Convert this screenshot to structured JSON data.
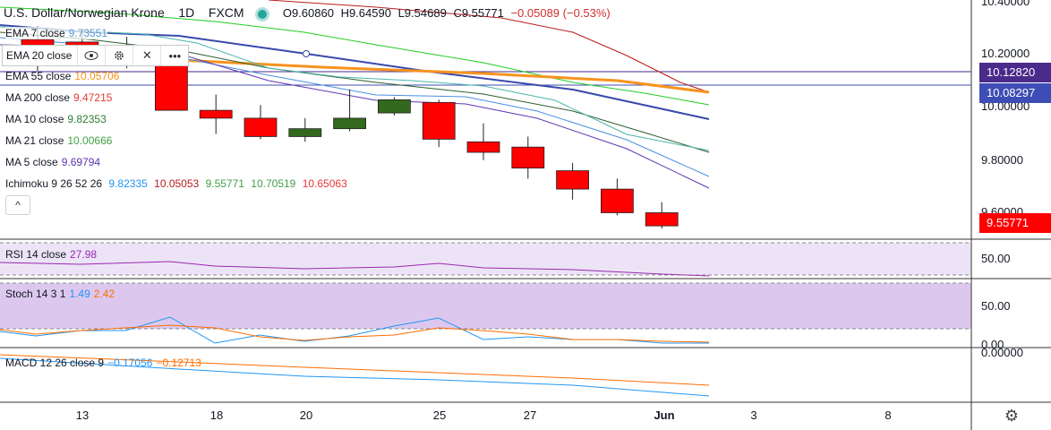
{
  "header": {
    "symbol": "U.S. Dollar/Norwegian Krone",
    "interval": "1D",
    "source": "FXCM",
    "open": "O9.60860",
    "high": "H9.64590",
    "low": "L9.54689",
    "close": "C9.55771",
    "change": "−0.05089 (−0.53%)"
  },
  "legend": {
    "ema7": {
      "name": "EMA 7 close",
      "value": "9.73551",
      "color": "#5b9bd5"
    },
    "ema20": {
      "name": "EMA 20 close"
    },
    "ema55": {
      "name": "EMA 55 close",
      "value": "10.05706",
      "color": "#f7931e"
    },
    "ma200": {
      "name": "MA 200 close",
      "value": "9.47215",
      "color": "#e53935"
    },
    "ma10": {
      "name": "MA 10 close",
      "value": "9.82353",
      "color": "#2e7d32"
    },
    "ma21": {
      "name": "MA 21 close",
      "value": "10.00666",
      "color": "#43a047"
    },
    "ma5": {
      "name": "MA 5 close",
      "value": "9.69794",
      "color": "#5e35b1"
    },
    "ichimoku": {
      "name": "Ichimoku 9 26 52 26",
      "v1": "9.82335",
      "v2": "10.05053",
      "v3": "9.55771",
      "v4": "10.70519",
      "v5": "10.65063"
    }
  },
  "toolbar_icons": [
    "eye-icon",
    "gear-icon",
    "close-icon",
    "more-icon"
  ],
  "collapse_icon": "^",
  "price_axis": {
    "ticks": [
      "10.40000",
      "10.20000",
      "10.00000",
      "9.80000",
      "9.60000"
    ],
    "tags": [
      {
        "text": "10.12820",
        "color": "#4a2a8a"
      },
      {
        "text": "10.08297",
        "color": "#3d4db5"
      },
      {
        "text": "9.55771",
        "color": "#ff0000"
      }
    ]
  },
  "rsi": {
    "label": "RSI 14 close",
    "value": "27.98",
    "ticks": [
      "50.00"
    ],
    "color": "#9c27b0"
  },
  "stoch": {
    "label": "Stoch 14 3 1",
    "k": "1.49",
    "d": "2.42",
    "ticks": [
      "50.00",
      "0.00"
    ],
    "k_color": "#2196f3",
    "d_color": "#ff6d00"
  },
  "macd": {
    "label": "MACD 12 26 close 9",
    "macd": "−0.17056",
    "signal": "−0.12713",
    "ticks": [
      "0.00000"
    ],
    "macd_color": "#2196f3",
    "signal_color": "#ff6d00"
  },
  "dates": [
    "13",
    "18",
    "20",
    "25",
    "27",
    "Jun",
    "3",
    "8"
  ],
  "settings_icon": "gear-icon",
  "chart_data": {
    "type": "candlestick",
    "candles": [
      {
        "o": 10.27,
        "h": 10.32,
        "l": 10.15,
        "c": 10.22
      },
      {
        "o": 10.26,
        "h": 10.3,
        "l": 10.17,
        "c": 10.18
      },
      {
        "o": 10.19,
        "h": 10.28,
        "l": 10.16,
        "c": 10.21
      },
      {
        "o": 10.22,
        "h": 10.24,
        "l": 10.0,
        "c": 10.0
      },
      {
        "o": 10.0,
        "h": 10.06,
        "l": 9.91,
        "c": 9.97
      },
      {
        "o": 9.97,
        "h": 10.02,
        "l": 9.89,
        "c": 9.9
      },
      {
        "o": 9.9,
        "h": 9.97,
        "l": 9.88,
        "c": 9.93
      },
      {
        "o": 9.93,
        "h": 10.08,
        "l": 9.92,
        "c": 9.97
      },
      {
        "o": 9.99,
        "h": 10.05,
        "l": 9.98,
        "c": 10.04
      },
      {
        "o": 10.03,
        "h": 10.04,
        "l": 9.86,
        "c": 9.89
      },
      {
        "o": 9.88,
        "h": 9.95,
        "l": 9.81,
        "c": 9.84
      },
      {
        "o": 9.86,
        "h": 9.9,
        "l": 9.74,
        "c": 9.78
      },
      {
        "o": 9.77,
        "h": 9.8,
        "l": 9.66,
        "c": 9.7
      },
      {
        "o": 9.7,
        "h": 9.74,
        "l": 9.6,
        "c": 9.61
      },
      {
        "o": 9.61,
        "h": 9.65,
        "l": 9.55,
        "c": 9.56
      }
    ],
    "ylim": [
      9.54,
      10.42
    ],
    "horizontal_lines": [
      10.1282,
      10.08297
    ]
  }
}
